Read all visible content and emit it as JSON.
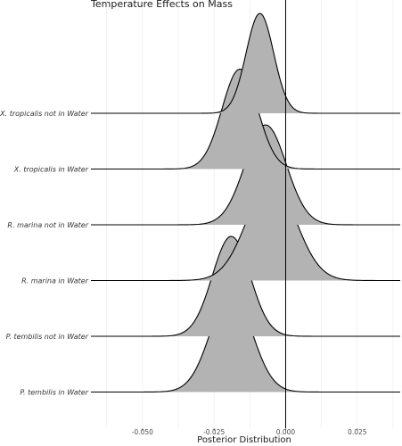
{
  "chart_data": {
    "type": "ridgeline",
    "title": "Temperature Effects on Mass",
    "xlabel": "Posterior Distribution",
    "ylabel": "",
    "xlim": [
      -0.068,
      0.04
    ],
    "x_ticks": [
      -0.05,
      -0.025,
      0.0,
      0.025
    ],
    "x_tick_labels": [
      "-0.050",
      "-0.025",
      "0.000",
      "0.025"
    ],
    "reference_line": 0.0,
    "grid": "vertical",
    "fill_color": "#b3b3b3",
    "line_color": "#000000",
    "series": [
      {
        "name": "P. tembilis in Water",
        "mean": -0.019,
        "sd": 0.0072
      },
      {
        "name": "P. tembilis not in Water",
        "mean": -0.019,
        "sd": 0.0066
      },
      {
        "name": "R. marina in Water",
        "mean": -0.005,
        "sd": 0.0085
      },
      {
        "name": "R. marina not in Water",
        "mean": -0.007,
        "sd": 0.0072
      },
      {
        "name": "X. tropicalis in Water",
        "mean": -0.016,
        "sd": 0.0062
      },
      {
        "name": "X. tropicalis not in Water",
        "mean": -0.009,
        "sd": 0.0048
      }
    ]
  }
}
